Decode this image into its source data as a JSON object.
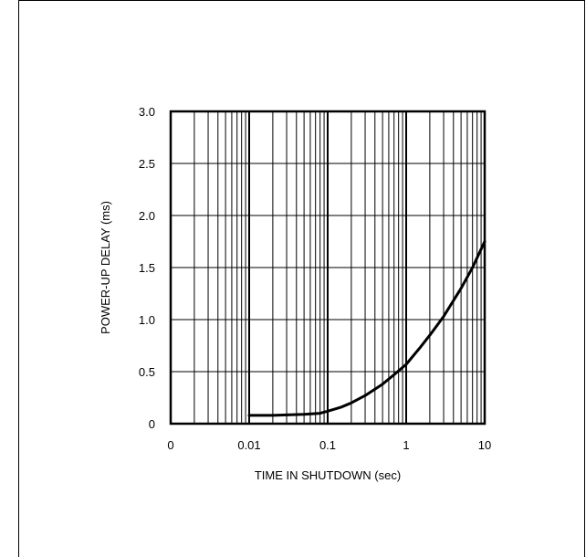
{
  "chart_data": {
    "type": "line",
    "xscale": "log",
    "xlabel": "TIME IN SHUTDOWN (sec)",
    "ylabel": "POWER-UP DELAY (ms)",
    "xlim": [
      0.001,
      10
    ],
    "ylim": [
      0,
      3.0
    ],
    "x_ticks": [
      "0",
      "0.01",
      "0.1",
      "1",
      "10"
    ],
    "y_ticks": [
      "3.0",
      "2.5",
      "2.0",
      "1.5",
      "1.0",
      "0.5",
      "0"
    ],
    "grid": true,
    "series": [
      {
        "x": [
          0.01,
          0.02,
          0.05,
          0.08,
          0.1,
          0.15,
          0.2,
          0.3,
          0.5,
          0.7,
          1,
          1.5,
          2,
          3,
          5,
          7,
          10
        ],
        "y": [
          0.08,
          0.08,
          0.09,
          0.1,
          0.12,
          0.16,
          0.2,
          0.27,
          0.38,
          0.47,
          0.57,
          0.73,
          0.85,
          1.03,
          1.3,
          1.5,
          1.75
        ]
      }
    ]
  }
}
